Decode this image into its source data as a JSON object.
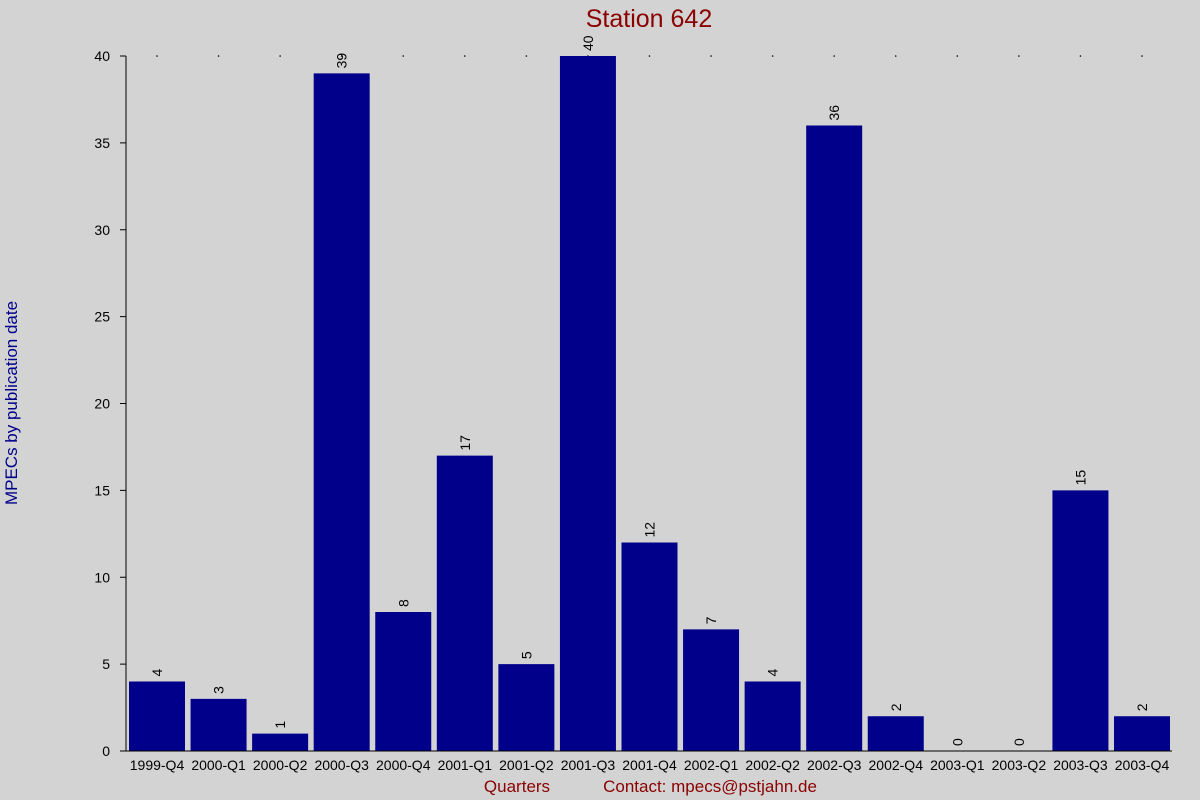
{
  "colors": {
    "background": "#d3d3d3",
    "bar": "#00008b",
    "title": "#8b0000",
    "ylabel": "#00008b",
    "footer": "#8b0000",
    "text": "#000000"
  },
  "footer": {
    "xlabel": "Quarters",
    "contact": "Contact: mpecs@pstjahn.de"
  },
  "chart_data": {
    "type": "bar",
    "title": "Station 642",
    "xlabel": "Quarters",
    "ylabel": "MPECs by publication date",
    "categories": [
      "1999-Q4",
      "2000-Q1",
      "2000-Q2",
      "2000-Q3",
      "2000-Q4",
      "2001-Q1",
      "2001-Q2",
      "2001-Q3",
      "2001-Q4",
      "2002-Q1",
      "2002-Q2",
      "2002-Q3",
      "2002-Q4",
      "2003-Q1",
      "2003-Q2",
      "2003-Q3",
      "2003-Q4"
    ],
    "values": [
      4,
      3,
      1,
      39,
      8,
      17,
      5,
      40,
      12,
      7,
      4,
      36,
      2,
      0,
      0,
      15,
      2
    ],
    "ylim": [
      0,
      40
    ],
    "yticks": [
      0,
      5,
      10,
      15,
      20,
      25,
      30,
      35,
      40
    ],
    "grid": false,
    "data_labels": true
  }
}
